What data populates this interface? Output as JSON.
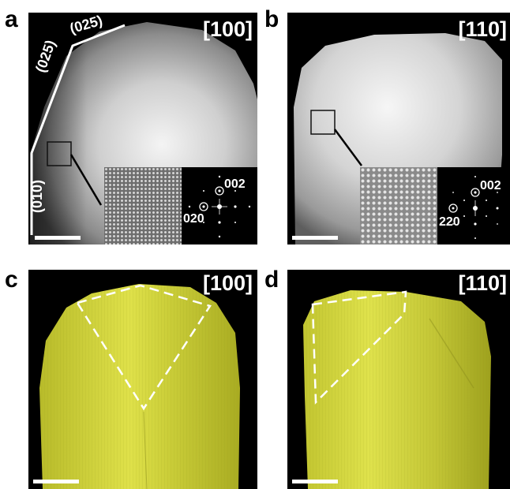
{
  "panels": [
    {
      "letter": "a",
      "zone_axis": "[100]",
      "facets": [
        "(025)",
        "(025)",
        "(010)"
      ],
      "fft_spots": [
        "002",
        "020"
      ]
    },
    {
      "letter": "b",
      "zone_axis": "[110]",
      "fft_spots": [
        "002",
        "220"
      ]
    },
    {
      "letter": "c",
      "zone_axis": "[100]"
    },
    {
      "letter": "d",
      "zone_axis": "[110]"
    }
  ],
  "colors": {
    "render_yellow": "#d6d83a",
    "background": "#000000",
    "annotation": "#ffffff"
  }
}
